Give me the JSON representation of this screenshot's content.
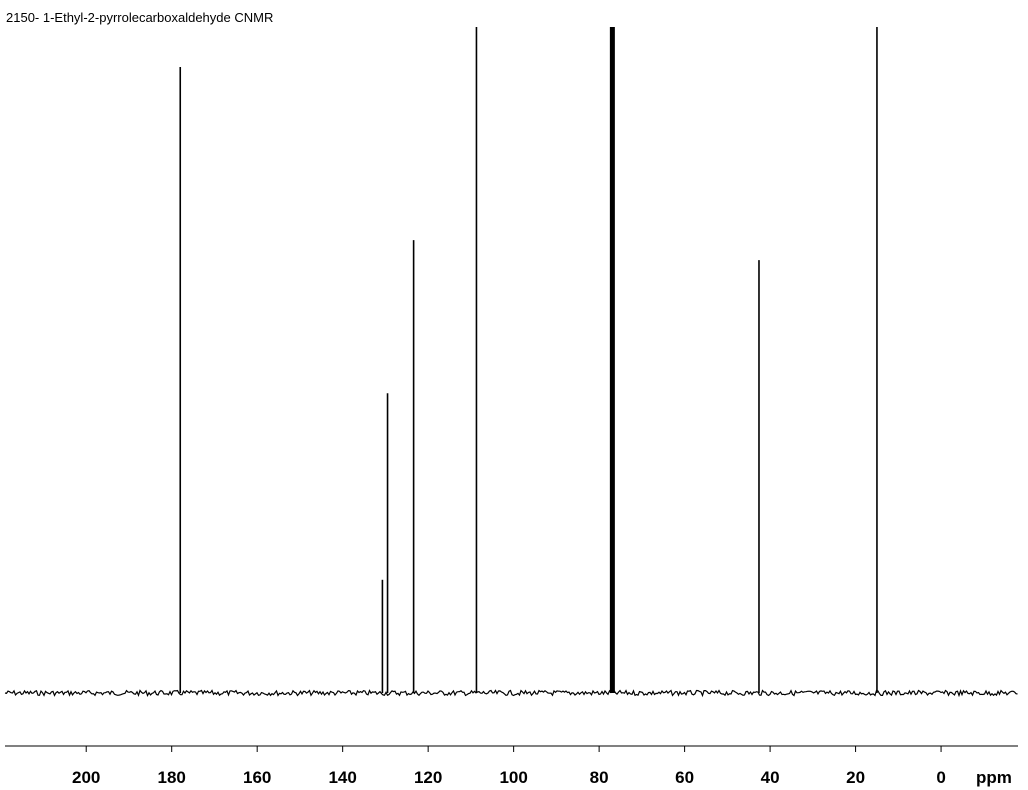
{
  "chart_data": {
    "type": "spectrum",
    "title": "2150- 1-Ethyl-2-pyrrolecarboxaldehyde CNMR",
    "x_label": "ppm",
    "x": [
      178.0,
      130.7,
      129.5,
      123.4,
      108.7,
      76.9,
      42.6,
      15.0
    ],
    "values": [
      94,
      17,
      45,
      68,
      100,
      100,
      65,
      100
    ],
    "color": "#000000",
    "xlim": [
      219,
      -18
    ],
    "ylim": [
      0,
      100
    ],
    "xticks": [
      200,
      180,
      160,
      140,
      120,
      100,
      80,
      60,
      40,
      20,
      0
    ]
  }
}
